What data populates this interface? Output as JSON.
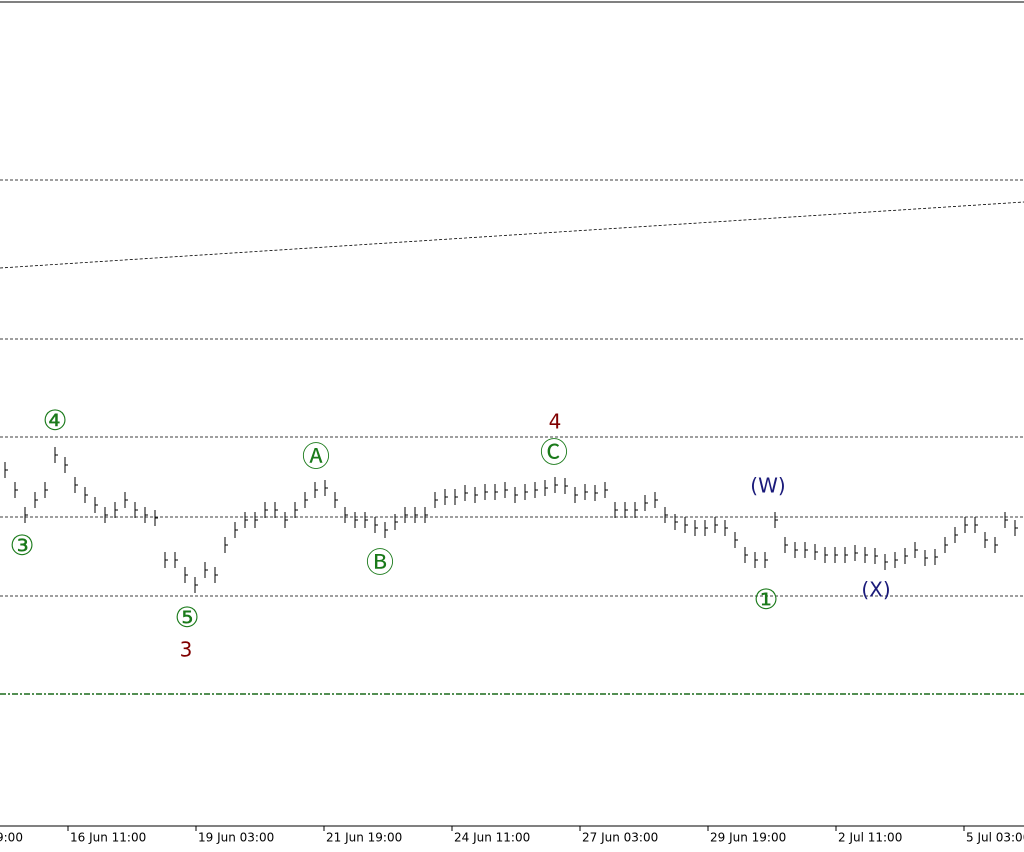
{
  "chart_data": {
    "type": "bar",
    "values": [
      356,
      336,
      311,
      326,
      336,
      371,
      361,
      341,
      331,
      321,
      311,
      316,
      326,
      316,
      311,
      308,
      266,
      266,
      251,
      241,
      256,
      251,
      281,
      296,
      306,
      306,
      316,
      316,
      306,
      316,
      326,
      336,
      338,
      326,
      311,
      306,
      306,
      301,
      296,
      304,
      311,
      311,
      311,
      326,
      329,
      329,
      333,
      331,
      334,
      334,
      336,
      331,
      334,
      336,
      338,
      341,
      340,
      331,
      334,
      333,
      336,
      316,
      316,
      316,
      323,
      326,
      311,
      304,
      301,
      298,
      298,
      301,
      298,
      286,
      271,
      266,
      266,
      306,
      281,
      276,
      276,
      274,
      271,
      271,
      271,
      273,
      271,
      270,
      264,
      266,
      270,
      276,
      268,
      269,
      281,
      291,
      301,
      301,
      286,
      281,
      306,
      298,
      296
    ],
    "color": "#000000",
    "ylim": [
      0,
      826
    ],
    "xlim": [
      0,
      102.4
    ],
    "xticks": [
      {
        "value": -0.6,
        "label": "9:00"
      },
      {
        "value": 6.8,
        "label": "16 Jun 11:00"
      },
      {
        "value": 19.6,
        "label": "19 Jun 03:00"
      },
      {
        "value": 32.4,
        "label": "21 Jun 19:00"
      },
      {
        "value": 45.2,
        "label": "24 Jun 11:00"
      },
      {
        "value": 58,
        "label": "27 Jun 03:00"
      },
      {
        "value": 70.8,
        "label": "29 Jun 19:00"
      },
      {
        "value": 83.6,
        "label": "2 Jul 11:00"
      },
      {
        "value": 96.4,
        "label": "5 Jul 03:00"
      }
    ],
    "levels": [
      646,
      487,
      389,
      309,
      230
    ],
    "support_level": 132,
    "trend_line": [
      558,
      624
    ],
    "annotations": [
      {
        "text": "③",
        "x": 2.2,
        "y": 279,
        "color": "#1a7a1a"
      },
      {
        "text": "④",
        "x": 5.5,
        "y": 404,
        "color": "#1a7a1a"
      },
      {
        "text": "⑤",
        "x": 18.7,
        "y": 207,
        "color": "#1a7a1a"
      },
      {
        "text": "3",
        "x": 18.6,
        "y": 175,
        "color": "#800000"
      },
      {
        "text": "Ⓐ",
        "x": 31.6,
        "y": 368,
        "color": "#1a7a1a"
      },
      {
        "text": "Ⓑ",
        "x": 38,
        "y": 262,
        "color": "#1a7a1a"
      },
      {
        "text": "Ⓒ",
        "x": 55.4,
        "y": 372,
        "color": "#1a7a1a"
      },
      {
        "text": "4",
        "x": 55.5,
        "y": 403,
        "color": "#800000"
      },
      {
        "text": "(W)",
        "x": 76.8,
        "y": 339,
        "color": "#1a1a7a"
      },
      {
        "text": "①",
        "x": 76.6,
        "y": 225,
        "color": "#1a7a1a"
      },
      {
        "text": "(X)",
        "x": 87.6,
        "y": 235,
        "color": "#1a1a7a"
      }
    ]
  }
}
